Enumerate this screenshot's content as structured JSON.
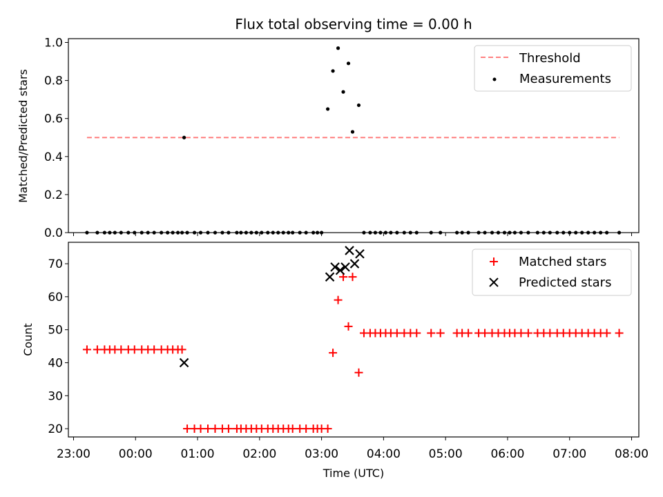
{
  "chart_data": [
    {
      "type": "scatter",
      "title": "Flux total observing time = 0.00 h",
      "xlabel": "",
      "ylabel": "Matched/Predicted stars",
      "xlim": [
        "22:55",
        "08:07"
      ],
      "ylim": [
        0,
        1.02
      ],
      "yticks": [
        0.0,
        0.2,
        0.4,
        0.6,
        0.8,
        1.0
      ],
      "ytick_labels": [
        "0.0",
        "0.2",
        "0.4",
        "0.6",
        "0.8",
        "1.0"
      ],
      "legend_position": "top-right",
      "series": [
        {
          "name": "Threshold",
          "kind": "dashed-line",
          "color": "#ff7f7f",
          "x": [
            "23:13",
            "07:48"
          ],
          "y": [
            0.5,
            0.5
          ]
        },
        {
          "name": "Measurements",
          "kind": "dot",
          "color": "#000000",
          "x": [
            "23:13",
            "23:23",
            "23:30",
            "23:35",
            "23:40",
            "23:46",
            "23:53",
            "23:59",
            "00:06",
            "00:12",
            "00:18",
            "00:25",
            "00:31",
            "00:36",
            "00:41",
            "00:45",
            "00:50",
            "00:57",
            "00:47",
            "01:03",
            "01:10",
            "01:17",
            "01:24",
            "01:30",
            "01:38",
            "01:42",
            "01:47",
            "01:52",
            "01:57",
            "02:02",
            "02:08",
            "02:13",
            "02:18",
            "02:23",
            "02:28",
            "02:32",
            "02:39",
            "02:45",
            "02:52",
            "02:56",
            "03:00",
            "03:06",
            "03:11",
            "03:16",
            "03:21",
            "03:26",
            "03:30",
            "03:36",
            "03:41",
            "03:47",
            "03:52",
            "03:57",
            "04:02",
            "04:07",
            "04:13",
            "04:20",
            "04:26",
            "04:32",
            "04:46",
            "04:55",
            "05:11",
            "05:16",
            "05:22",
            "05:32",
            "05:38",
            "05:45",
            "05:51",
            "05:57",
            "06:02",
            "06:07",
            "06:13",
            "06:20",
            "06:29",
            "06:35",
            "06:41",
            "06:48",
            "06:54",
            "07:00",
            "07:06",
            "07:12",
            "07:18",
            "07:24",
            "07:30",
            "07:36",
            "07:48"
          ],
          "y": [
            0,
            0,
            0,
            0,
            0,
            0,
            0,
            0,
            0,
            0,
            0,
            0,
            0,
            0,
            0,
            0,
            0,
            0,
            0.5,
            0,
            0,
            0,
            0,
            0,
            0,
            0,
            0,
            0,
            0,
            0,
            0,
            0,
            0,
            0,
            0,
            0,
            0,
            0,
            0,
            0,
            0,
            0.65,
            0.85,
            0.97,
            0.74,
            0.89,
            0.53,
            0.67,
            0,
            0,
            0,
            0,
            0,
            0,
            0,
            0,
            0,
            0,
            0,
            0,
            0,
            0,
            0,
            0,
            0,
            0,
            0,
            0,
            0,
            0,
            0,
            0,
            0,
            0,
            0,
            0,
            0,
            0,
            0,
            0,
            0,
            0,
            0,
            0,
            0
          ]
        }
      ]
    },
    {
      "type": "scatter",
      "title": "",
      "xlabel": "Time (UTC)",
      "ylabel": "Count",
      "xlim": [
        "22:55",
        "08:07"
      ],
      "ylim": [
        17.5,
        76.5
      ],
      "yticks": [
        20,
        30,
        40,
        50,
        60,
        70
      ],
      "ytick_labels": [
        "20",
        "30",
        "40",
        "50",
        "60",
        "70"
      ],
      "xticks": [
        "23:00",
        "00:00",
        "01:00",
        "02:00",
        "03:00",
        "04:00",
        "05:00",
        "06:00",
        "07:00",
        "08:00"
      ],
      "xtick_labels": [
        "23:00",
        "00:00",
        "01:00",
        "02:00",
        "03:00",
        "04:00",
        "05:00",
        "06:00",
        "07:00",
        "08:00"
      ],
      "legend_position": "top-right",
      "series": [
        {
          "name": "Matched stars",
          "kind": "plus",
          "color": "#ff0000",
          "x": [
            "23:13",
            "23:23",
            "23:30",
            "23:35",
            "23:40",
            "23:46",
            "23:53",
            "23:59",
            "00:06",
            "00:12",
            "00:18",
            "00:25",
            "00:31",
            "00:36",
            "00:41",
            "00:45",
            "00:50",
            "00:57",
            "01:03",
            "01:10",
            "01:17",
            "01:24",
            "01:30",
            "01:38",
            "01:42",
            "01:47",
            "01:52",
            "01:57",
            "02:02",
            "02:08",
            "02:13",
            "02:18",
            "02:23",
            "02:28",
            "02:32",
            "02:39",
            "02:45",
            "02:52",
            "02:56",
            "03:00",
            "03:06",
            "03:11",
            "03:16",
            "03:21",
            "03:26",
            "03:30",
            "03:36",
            "03:41",
            "03:47",
            "03:52",
            "03:57",
            "04:02",
            "04:07",
            "04:13",
            "04:20",
            "04:26",
            "04:32",
            "04:46",
            "04:55",
            "05:11",
            "05:16",
            "05:22",
            "05:32",
            "05:38",
            "05:45",
            "05:51",
            "05:57",
            "06:02",
            "06:07",
            "06:13",
            "06:20",
            "06:29",
            "06:35",
            "06:41",
            "06:48",
            "06:54",
            "07:00",
            "07:06",
            "07:12",
            "07:18",
            "07:24",
            "07:30",
            "07:36",
            "07:48"
          ],
          "y": [
            44,
            44,
            44,
            44,
            44,
            44,
            44,
            44,
            44,
            44,
            44,
            44,
            44,
            44,
            44,
            44,
            20,
            20,
            20,
            20,
            20,
            20,
            20,
            20,
            20,
            20,
            20,
            20,
            20,
            20,
            20,
            20,
            20,
            20,
            20,
            20,
            20,
            20,
            20,
            20,
            20,
            43,
            59,
            66,
            51,
            66,
            37,
            49,
            49,
            49,
            49,
            49,
            49,
            49,
            49,
            49,
            49,
            49,
            49,
            49,
            49,
            49,
            49,
            49,
            49,
            49,
            49,
            49,
            49,
            49,
            49,
            49,
            49,
            49,
            49,
            49,
            49,
            49,
            49,
            49,
            49,
            49,
            49,
            49
          ]
        },
        {
          "name": "Predicted stars",
          "kind": "x",
          "color": "#000000",
          "x": [
            "00:47",
            "03:08",
            "03:13",
            "03:18",
            "03:23",
            "03:27",
            "03:32",
            "03:37"
          ],
          "y": [
            40,
            66,
            69,
            68,
            69,
            74,
            70,
            73
          ]
        }
      ]
    }
  ]
}
